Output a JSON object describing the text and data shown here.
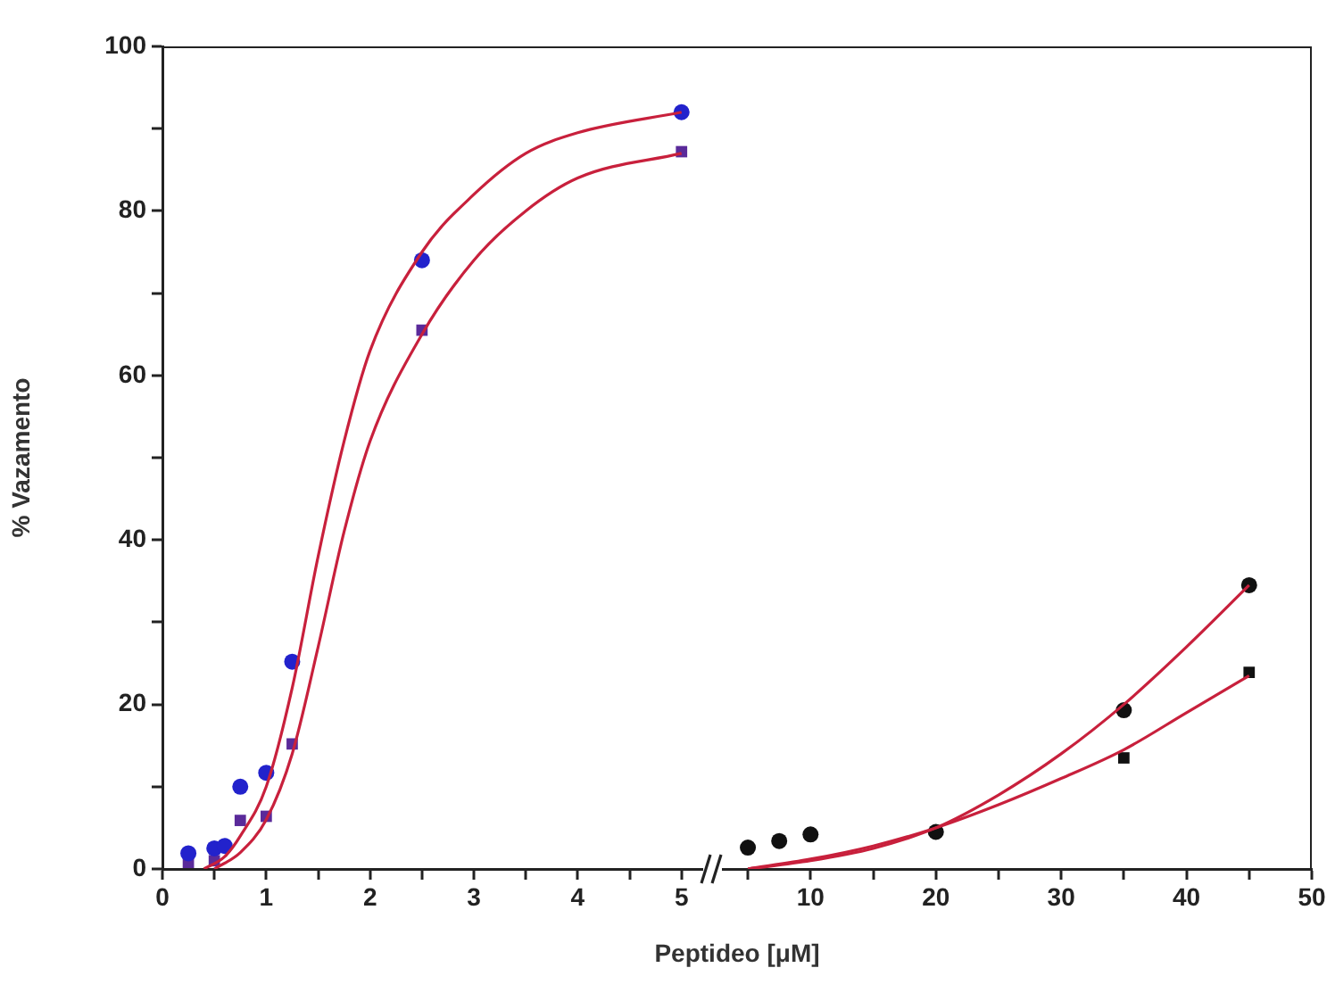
{
  "chart_data": [
    {
      "type": "scatter",
      "ylabel": "% Vazamento",
      "xlabel": "Peptideo [μM]",
      "xlim": [
        0,
        5.2
      ],
      "ylim": [
        0,
        100
      ],
      "legend": false,
      "xticks": [
        0,
        {
          "value": 0.5,
          "label": null
        },
        1,
        {
          "value": 1.5,
          "label": null
        },
        2,
        {
          "value": 2.5,
          "label": null
        },
        3,
        {
          "value": 3.5,
          "label": null
        },
        4,
        {
          "value": 4.5,
          "label": null
        },
        5
      ],
      "yticks": [
        0,
        {
          "value": 10,
          "label": null
        },
        20,
        {
          "value": 30,
          "label": null
        },
        40,
        {
          "value": 50,
          "label": null
        },
        60,
        {
          "value": 70,
          "label": null
        },
        80,
        {
          "value": 90,
          "label": null
        },
        100
      ],
      "series": [
        {
          "type": "line",
          "marker": "none",
          "color": "#c8203c",
          "x": [
            0.4,
            0.6,
            0.75,
            1.0,
            1.25,
            1.5,
            1.75,
            2.0,
            2.5,
            3.0,
            3.5,
            4.0,
            5.0
          ],
          "values": [
            0,
            1.5,
            4,
            10,
            22,
            38,
            52,
            63,
            75,
            82,
            87,
            89.5,
            92
          ]
        },
        {
          "type": "line",
          "marker": "none",
          "color": "#c8203c",
          "x": [
            0.5,
            0.75,
            1.0,
            1.25,
            1.5,
            1.75,
            2.0,
            2.5,
            3.0,
            3.5,
            4.0,
            5.0
          ],
          "values": [
            0,
            2,
            6,
            14,
            27,
            41,
            52,
            65,
            74,
            80,
            84,
            87
          ]
        },
        {
          "type": "scatter",
          "marker": "circle",
          "color": "#2222cc",
          "x": [
            0.25,
            0.5,
            0.6,
            0.75,
            1.0,
            1.25,
            2.5,
            5.0
          ],
          "values": [
            1.9,
            2.5,
            2.8,
            10,
            11.7,
            25.2,
            74,
            92
          ]
        },
        {
          "type": "scatter",
          "marker": "square",
          "color": "#5a2a9a",
          "x": [
            0.25,
            0.5,
            0.75,
            1.0,
            1.25,
            2.5,
            5.0
          ],
          "values": [
            0.8,
            1.0,
            5.9,
            6.4,
            15.2,
            65.5,
            87.2
          ]
        }
      ]
    },
    {
      "type": "scatter",
      "xlim": [
        3,
        50
      ],
      "ylim": [
        0,
        100
      ],
      "legend": false,
      "tick_labels": "x",
      "xticks": [
        {
          "value": 5,
          "label": null
        },
        10,
        {
          "value": 15,
          "label": null
        },
        20,
        {
          "value": 25,
          "label": null
        },
        30,
        {
          "value": 35,
          "label": null
        },
        40,
        {
          "value": 45,
          "label": null
        },
        50
      ],
      "yticks": [
        0,
        20,
        40,
        60,
        80,
        100
      ],
      "series": [
        {
          "type": "line",
          "marker": "none",
          "color": "#c8203c",
          "x": [
            5,
            10,
            15,
            20,
            25,
            30,
            35,
            40,
            45
          ],
          "values": [
            0,
            1,
            2.5,
            5,
            9,
            14,
            20,
            27,
            34.5
          ]
        },
        {
          "type": "line",
          "marker": "none",
          "color": "#c8203c",
          "x": [
            5,
            10,
            15,
            20,
            25,
            30,
            35,
            40,
            45
          ],
          "values": [
            0,
            1.2,
            2.8,
            5,
            7.8,
            11,
            14.5,
            19,
            23.5
          ]
        },
        {
          "type": "scatter",
          "marker": "circle",
          "color": "#111111",
          "x": [
            5,
            7.5,
            10,
            20,
            35,
            45
          ],
          "values": [
            2.6,
            3.4,
            4.2,
            4.5,
            19.3,
            34.5
          ]
        },
        {
          "type": "scatter",
          "marker": "square",
          "color": "#111111",
          "x": [
            35,
            45
          ],
          "values": [
            13.5,
            23.9
          ]
        }
      ]
    }
  ]
}
